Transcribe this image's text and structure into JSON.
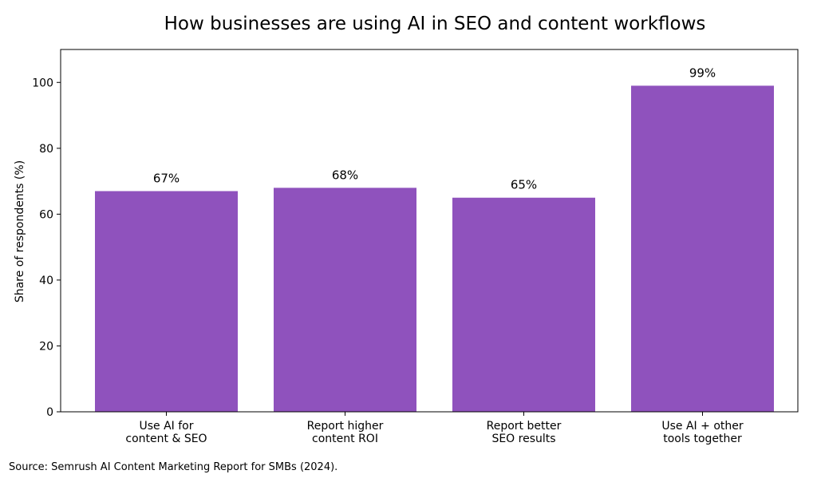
{
  "chart_data": {
    "type": "bar",
    "title": "How businesses are using AI in SEO and content workflows",
    "xlabel": "",
    "ylabel": "Share of respondents (%)",
    "categories": [
      [
        "Use AI for",
        "content & SEO"
      ],
      [
        "Report higher",
        "content ROI"
      ],
      [
        "Report better",
        "SEO results"
      ],
      [
        "Use AI + other",
        "tools together"
      ]
    ],
    "values": [
      67,
      68,
      65,
      99
    ],
    "value_labels": [
      "67%",
      "68%",
      "65%",
      "99%"
    ],
    "ylim": [
      0,
      110
    ],
    "yticks": [
      0,
      20,
      40,
      60,
      80,
      100
    ],
    "grid": false,
    "bar_color": "#8f52bd"
  },
  "source": "Source: Semrush AI Content Marketing Report for SMBs (2024)."
}
